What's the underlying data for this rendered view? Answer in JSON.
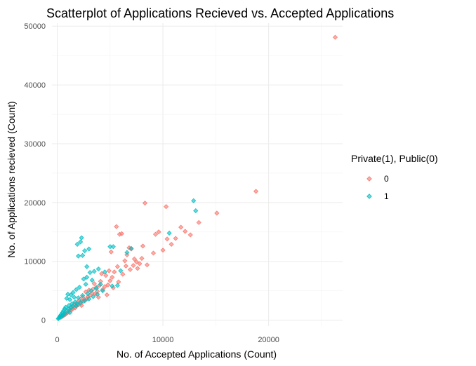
{
  "chart_data": {
    "type": "scatter",
    "title": "Scatterplot of Applications Recieved vs. Accepted Applications",
    "xlabel": "No. of Accepted Applications (Count)",
    "ylabel": "No. of Applications recieved (Count)",
    "xlim": [
      -500,
      27000
    ],
    "ylim": [
      -1000,
      50500
    ],
    "x_ticks": [
      0,
      10000,
      20000
    ],
    "y_ticks": [
      0,
      10000,
      20000,
      30000,
      40000,
      50000
    ],
    "grid": true,
    "legend": {
      "title": "Private(1), Public(0)",
      "placement": "right",
      "entries": [
        {
          "label": "0",
          "color": "#F8766D"
        },
        {
          "label": "1",
          "color": "#00BFC4"
        }
      ]
    },
    "series": [
      {
        "name": "0",
        "color": "#F8766D",
        "points": [
          [
            26300,
            48100
          ],
          [
            18800,
            21900
          ],
          [
            15100,
            18200
          ],
          [
            13400,
            16600
          ],
          [
            12600,
            14500
          ],
          [
            12100,
            15100
          ],
          [
            11700,
            15800
          ],
          [
            11200,
            13900
          ],
          [
            10800,
            12900
          ],
          [
            10300,
            19300
          ],
          [
            10400,
            13800
          ],
          [
            10000,
            11900
          ],
          [
            9600,
            15000
          ],
          [
            9300,
            14600
          ],
          [
            9100,
            11400
          ],
          [
            8300,
            19900
          ],
          [
            8100,
            12600
          ],
          [
            8000,
            10500
          ],
          [
            7800,
            9600
          ],
          [
            7600,
            8800
          ],
          [
            7300,
            10400
          ],
          [
            7000,
            12100
          ],
          [
            7200,
            9300
          ],
          [
            6900,
            8600
          ],
          [
            6600,
            11100
          ],
          [
            6500,
            9200
          ],
          [
            6400,
            10100
          ],
          [
            6100,
            14700
          ],
          [
            5900,
            14600
          ],
          [
            5600,
            15900
          ],
          [
            5700,
            9100
          ],
          [
            5400,
            8200
          ],
          [
            5800,
            6500
          ],
          [
            5200,
            7300
          ],
          [
            5000,
            6700
          ],
          [
            5300,
            5500
          ],
          [
            4800,
            6000
          ],
          [
            4600,
            7600
          ],
          [
            4500,
            5700
          ],
          [
            4300,
            5200
          ],
          [
            4100,
            6600
          ],
          [
            4000,
            5900
          ],
          [
            3800,
            4900
          ],
          [
            3700,
            5600
          ],
          [
            3600,
            4500
          ],
          [
            3400,
            5300
          ],
          [
            3300,
            4600
          ],
          [
            3100,
            4200
          ],
          [
            3000,
            5100
          ],
          [
            2900,
            4000
          ],
          [
            2800,
            3600
          ],
          [
            2700,
            4800
          ],
          [
            2600,
            3500
          ],
          [
            2500,
            3200
          ],
          [
            2400,
            3900
          ],
          [
            2300,
            3300
          ],
          [
            2200,
            2800
          ],
          [
            2100,
            3400
          ],
          [
            2000,
            2600
          ],
          [
            1900,
            3000
          ],
          [
            1800,
            2400
          ],
          [
            1700,
            2100
          ],
          [
            1600,
            2700
          ],
          [
            1500,
            2000
          ],
          [
            1400,
            1800
          ],
          [
            1300,
            2200
          ],
          [
            1200,
            1700
          ],
          [
            1100,
            1500
          ],
          [
            1000,
            1300
          ],
          [
            900,
            1200
          ],
          [
            800,
            1000
          ],
          [
            700,
            900
          ],
          [
            600,
            800
          ],
          [
            500,
            650
          ],
          [
            4200,
            7900
          ],
          [
            3500,
            6200
          ],
          [
            6200,
            7800
          ],
          [
            4700,
            4300
          ],
          [
            3900,
            3900
          ],
          [
            2300,
            2500
          ],
          [
            7500,
            9900
          ],
          [
            8500,
            9400
          ],
          [
            6800,
            12300
          ],
          [
            5100,
            11600
          ],
          [
            4900,
            8400
          ]
        ]
      },
      {
        "name": "1",
        "color": "#00BFC4",
        "points": [
          [
            12900,
            20300
          ],
          [
            13100,
            18600
          ],
          [
            10600,
            14800
          ],
          [
            7000,
            12200
          ],
          [
            6600,
            11500
          ],
          [
            5300,
            12500
          ],
          [
            5000,
            12500
          ],
          [
            2300,
            14000
          ],
          [
            2200,
            13300
          ],
          [
            1900,
            12900
          ],
          [
            3000,
            12100
          ],
          [
            2600,
            11800
          ],
          [
            2400,
            11000
          ],
          [
            2000,
            10900
          ],
          [
            3900,
            8700
          ],
          [
            3500,
            8300
          ],
          [
            3100,
            8100
          ],
          [
            4500,
            8200
          ],
          [
            2800,
            7300
          ],
          [
            2500,
            7000
          ],
          [
            3300,
            6800
          ],
          [
            2700,
            6100
          ],
          [
            2100,
            5600
          ],
          [
            1800,
            5200
          ],
          [
            1500,
            4700
          ],
          [
            1300,
            4300
          ],
          [
            1000,
            4400
          ],
          [
            900,
            3700
          ],
          [
            1200,
            3500
          ],
          [
            1600,
            3900
          ],
          [
            2000,
            3800
          ],
          [
            2400,
            4200
          ],
          [
            2900,
            4500
          ],
          [
            3200,
            5000
          ],
          [
            1700,
            3100
          ],
          [
            1400,
            2800
          ],
          [
            1100,
            2500
          ],
          [
            800,
            2200
          ],
          [
            700,
            1900
          ],
          [
            600,
            1600
          ],
          [
            500,
            1300
          ],
          [
            400,
            1000
          ],
          [
            300,
            800
          ],
          [
            250,
            600
          ],
          [
            200,
            450
          ],
          [
            150,
            350
          ],
          [
            100,
            250
          ],
          [
            900,
            1500
          ],
          [
            1100,
            1900
          ],
          [
            1300,
            2100
          ],
          [
            1500,
            2400
          ],
          [
            1900,
            2700
          ],
          [
            2200,
            3000
          ],
          [
            2600,
            3300
          ],
          [
            3000,
            3600
          ],
          [
            3400,
            4000
          ],
          [
            3800,
            4400
          ],
          [
            4300,
            5000
          ],
          [
            5200,
            5800
          ],
          [
            5700,
            5900
          ],
          [
            4100,
            6100
          ],
          [
            6000,
            8400
          ],
          [
            2800,
            9100
          ],
          [
            3700,
            5400
          ],
          [
            1800,
            2400
          ],
          [
            1200,
            1300
          ],
          [
            700,
            1100
          ],
          [
            450,
            700
          ],
          [
            350,
            500
          ],
          [
            600,
            900
          ]
        ]
      }
    ]
  }
}
